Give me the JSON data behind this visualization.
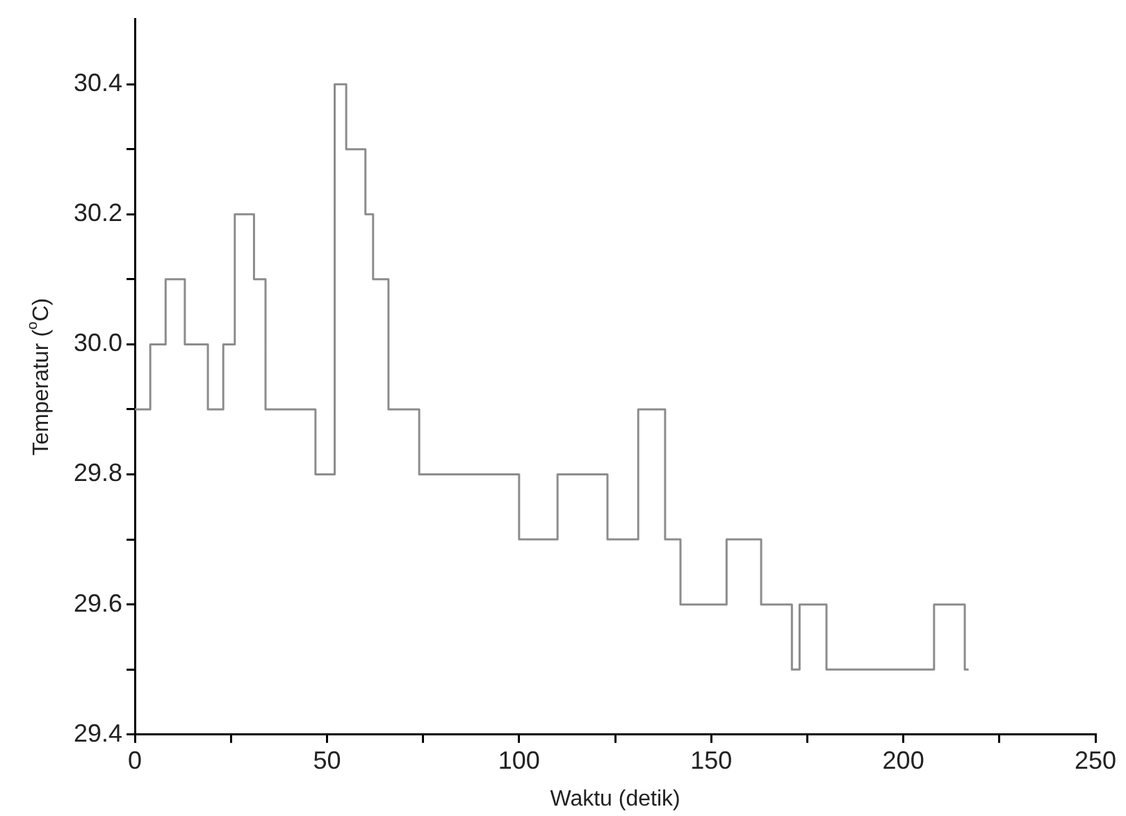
{
  "chart_data": {
    "type": "step",
    "xlabel": "Waktu (detik)",
    "ylabel": "Temperatur ($^{o}$C)",
    "x": [
      0,
      4,
      8,
      13,
      19,
      23,
      26,
      31,
      34,
      47,
      52,
      55,
      60,
      62,
      66,
      74,
      100,
      110,
      123,
      131,
      138,
      142,
      154,
      163,
      171,
      173,
      180,
      208,
      216,
      217
    ],
    "series": [
      {
        "color": "#8c8c8c",
        "values": [
          29.9,
          30.0,
          30.1,
          30.0,
          29.9,
          30.0,
          30.2,
          30.1,
          29.9,
          29.8,
          30.4,
          30.3,
          30.2,
          30.1,
          29.9,
          29.8,
          29.7,
          29.8,
          29.7,
          29.9,
          29.7,
          29.6,
          29.7,
          29.6,
          29.5,
          29.6,
          29.5,
          29.6,
          29.5,
          29.5
        ]
      }
    ],
    "xlim": [
      0,
      250
    ],
    "xticks": [
      0,
      {
        "value": 25,
        "label": null
      },
      50,
      {
        "value": 75,
        "label": null
      },
      100,
      {
        "value": 125,
        "label": null
      },
      150,
      {
        "value": 175,
        "label": null
      },
      200,
      {
        "value": 225,
        "label": null
      },
      250
    ],
    "ylim": [
      29.4,
      30.5
    ],
    "yticks": [
      {
        "value": 29.4,
        "label": "29.4"
      },
      {
        "value": 29.5,
        "label": null
      },
      {
        "value": 29.6,
        "label": "29.6"
      },
      {
        "value": 29.7,
        "label": null
      },
      {
        "value": 29.8,
        "label": "29.8"
      },
      {
        "value": 29.9,
        "label": null
      },
      {
        "value": 30.0,
        "label": "30.0"
      },
      {
        "value": 30.1,
        "label": null
      },
      {
        "value": 30.2,
        "label": "30.2"
      },
      {
        "value": 30.3,
        "label": null
      },
      {
        "value": 30.4,
        "label": "30.4"
      }
    ],
    "grid": false,
    "legend": false
  }
}
